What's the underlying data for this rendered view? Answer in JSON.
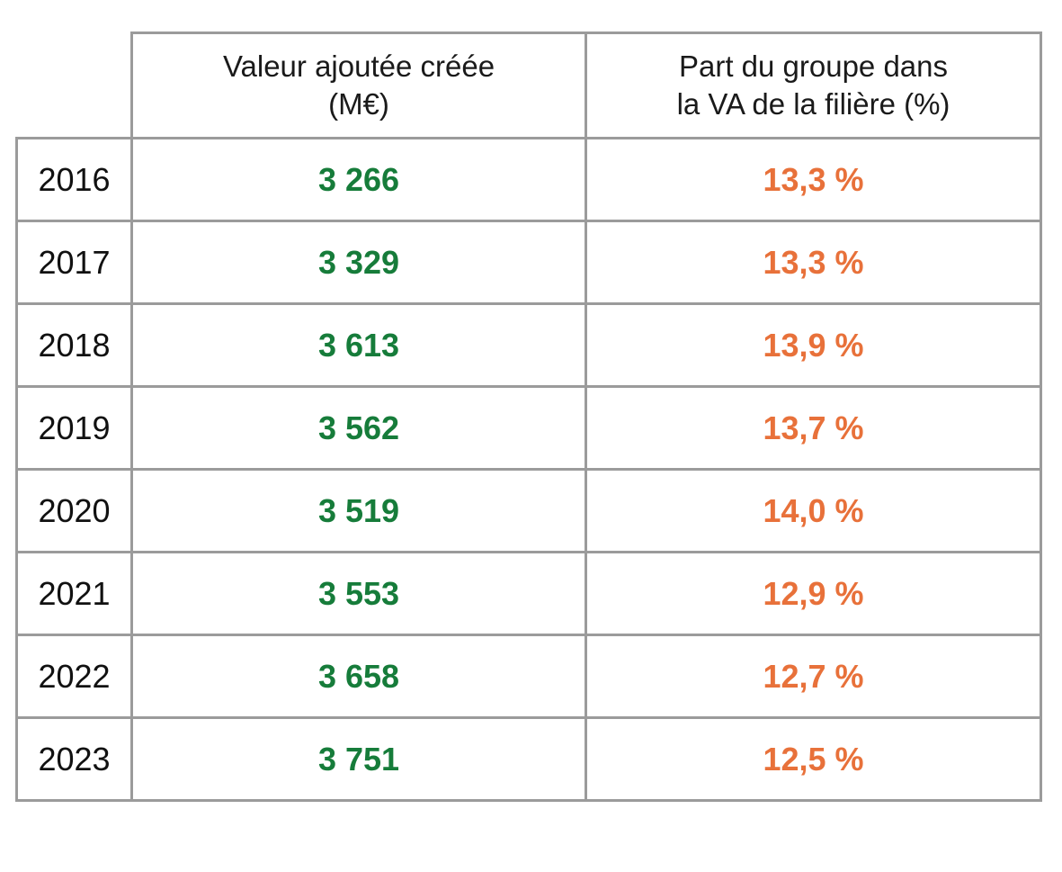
{
  "table": {
    "header": {
      "col_va_line1": "Valeur ajoutée créée",
      "col_va_line2": "(M€)",
      "col_part_line1": "Part du groupe dans",
      "col_part_line2": "la VA de la filière  (%)"
    },
    "rows": [
      {
        "year": "2016",
        "value": "3 266",
        "share": "13,3 %"
      },
      {
        "year": "2017",
        "value": "3 329",
        "share": "13,3 %"
      },
      {
        "year": "2018",
        "value": "3 613",
        "share": "13,9 %"
      },
      {
        "year": "2019",
        "value": "3 562",
        "share": "13,7 %"
      },
      {
        "year": "2020",
        "value": "3 519",
        "share": "14,0 %"
      },
      {
        "year": "2021",
        "value": "3 553",
        "share": "12,9 %"
      },
      {
        "year": "2022",
        "value": "3 658",
        "share": "12,7 %"
      },
      {
        "year": "2023",
        "value": "3 751",
        "share": "12,5 %"
      }
    ]
  },
  "colors": {
    "value_green": "#167c3a",
    "share_orange": "#e8713a",
    "border_gray": "#9b9b9b"
  }
}
